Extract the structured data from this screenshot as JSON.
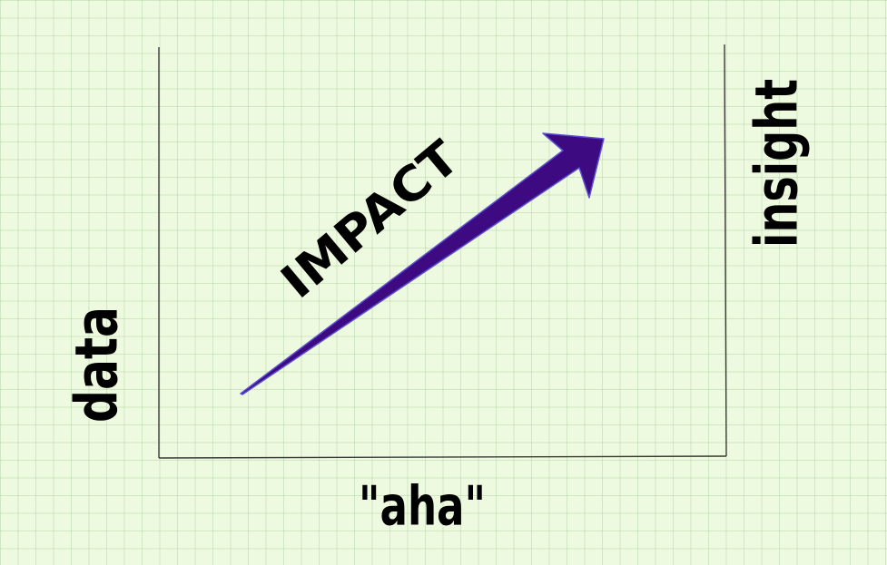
{
  "labels": {
    "left_axis": "data",
    "right_axis": "insight",
    "bottom_axis": "\"aha\"",
    "arrow": "IMPACT"
  },
  "colors": {
    "background": "#eefadf",
    "grid": "#a6cf98",
    "frame": "#3a3a3a",
    "arrow_fill": "#3d0a82",
    "arrow_edge": "#5b4fd1",
    "text": "#000000"
  }
}
